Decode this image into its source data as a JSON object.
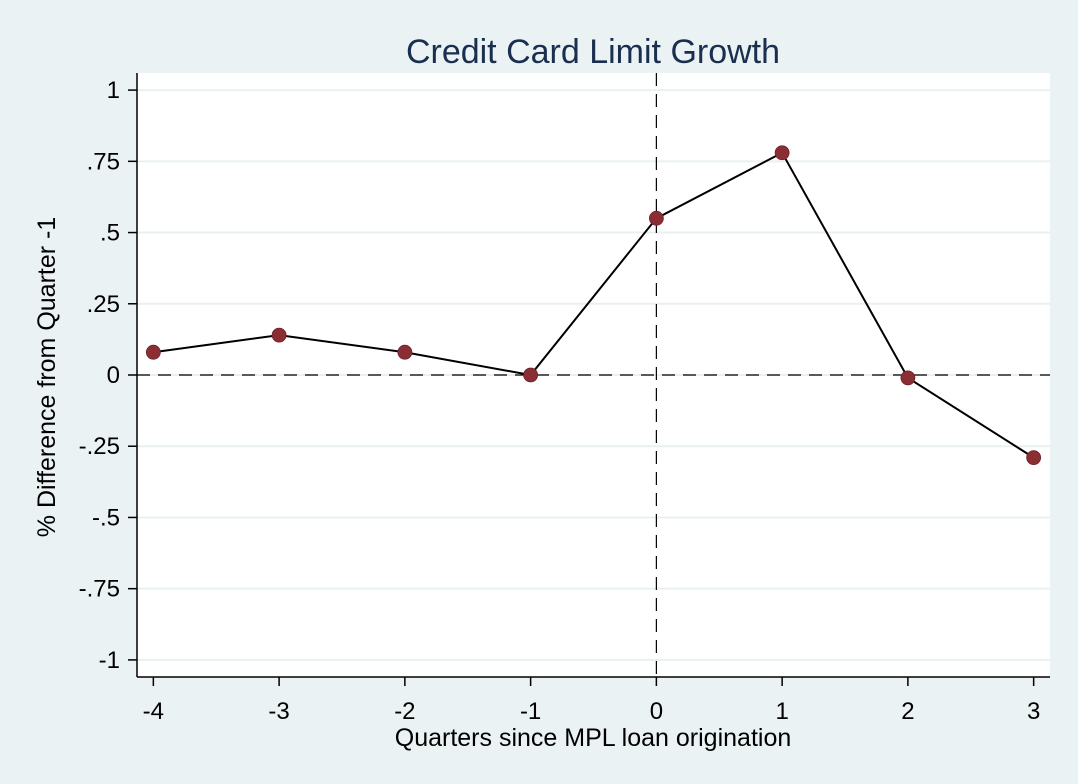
{
  "chart_data": {
    "type": "line",
    "title": "Credit Card Limit Growth",
    "xlabel": "Quarters since MPL loan origination",
    "ylabel": "% Difference from Quarter -1",
    "x": [
      -4,
      -3,
      -2,
      -1,
      0,
      1,
      2,
      3
    ],
    "series": [
      {
        "values": [
          0.08,
          0.14,
          0.08,
          0.0,
          0.55,
          0.78,
          -0.01,
          -0.29
        ]
      }
    ],
    "xticks": [
      -4,
      -3,
      -2,
      -1,
      0,
      1,
      2,
      3
    ],
    "xtick_labels": [
      "-4",
      "-3",
      "-2",
      "-1",
      "0",
      "1",
      "2",
      "3"
    ],
    "yticks": [
      1,
      0.75,
      0.5,
      0.25,
      0,
      -0.25,
      -0.5,
      -0.75,
      -1
    ],
    "ytick_labels": [
      "1",
      ".75",
      ".5",
      ".25",
      "0",
      "-.25",
      "-.5",
      "-.75",
      "-1"
    ],
    "xlim": [
      -4.13,
      3.13
    ],
    "ylim": [
      -1.06,
      1.06
    ],
    "reference_lines": {
      "vertical_x": 0,
      "horizontal_y": 0,
      "style": "dashed"
    },
    "grid": "horizontal",
    "colors": {
      "background": "#eaf2f3",
      "plot_area": "#ffffff",
      "grid": "#e9f0f0",
      "line": "#000000",
      "marker": "#8b2e34",
      "title": "#1a2e4f"
    }
  }
}
